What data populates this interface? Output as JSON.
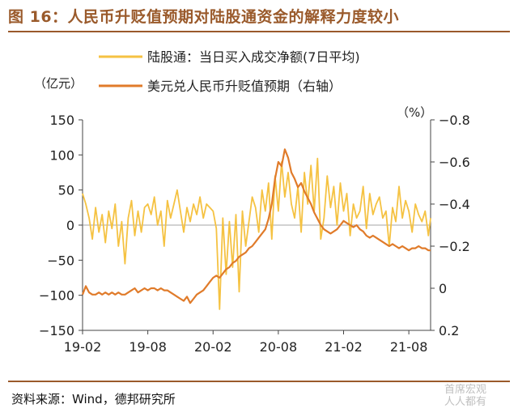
{
  "header": {
    "title": "图 16：人民币升贬值预期对陆股通资金的解释力度较小"
  },
  "footer": {
    "source": "资料来源：Wind，德邦研究所",
    "watermark_line1": "首席宏观",
    "watermark_line2": "人人都有"
  },
  "chart_data": {
    "type": "line",
    "title": "",
    "left_axis_unit": "（亿元）",
    "right_axis_unit": "（%）",
    "left_ylim": [
      -150,
      150
    ],
    "left_ticks": [
      150,
      100,
      50,
      0,
      -50,
      -100,
      -150
    ],
    "left_tick_labels": [
      "150",
      "100",
      "50",
      "0",
      "−50",
      "−100",
      "−150"
    ],
    "right_ylim": [
      0.2,
      -0.8
    ],
    "right_ticks": [
      -0.8,
      -0.6,
      -0.4,
      -0.2,
      0,
      0.2
    ],
    "right_tick_labels": [
      "−0.8",
      "−0.6",
      "−0.4",
      "−0.2",
      "0",
      "0.2"
    ],
    "x_range": [
      0,
      32
    ],
    "x_ticks": [
      0,
      6,
      12,
      18,
      24,
      30
    ],
    "x_tick_labels": [
      "19-02",
      "19-08",
      "20-02",
      "20-08",
      "21-02",
      "21-08"
    ],
    "legend": {
      "position": "top",
      "entries": [
        {
          "name": "陆股通：当日买入成交净额(7日平均)",
          "color": "#f5c242",
          "axis": "left"
        },
        {
          "name": "美元兑人民币升贬值预期（右轴）",
          "color": "#e07b2a",
          "axis": "right"
        }
      ]
    },
    "series": [
      {
        "name": "陆股通：当日买入成交净额(7日平均)",
        "axis": "left",
        "color": "#f5c242",
        "x": [
          0,
          0.3,
          0.6,
          0.9,
          1.2,
          1.5,
          1.8,
          2.1,
          2.4,
          2.7,
          3.0,
          3.3,
          3.6,
          3.9,
          4.2,
          4.5,
          4.8,
          5.1,
          5.4,
          5.7,
          6.0,
          6.3,
          6.6,
          6.9,
          7.2,
          7.5,
          7.8,
          8.1,
          8.4,
          8.7,
          9.0,
          9.3,
          9.6,
          9.9,
          10.2,
          10.5,
          10.8,
          11.1,
          11.4,
          11.7,
          12.0,
          12.3,
          12.6,
          12.9,
          13.2,
          13.5,
          13.8,
          14.1,
          14.4,
          14.7,
          15.0,
          15.3,
          15.6,
          15.9,
          16.2,
          16.5,
          16.8,
          17.1,
          17.4,
          17.7,
          18.0,
          18.3,
          18.6,
          18.9,
          19.2,
          19.5,
          19.8,
          20.1,
          20.4,
          20.7,
          21.0,
          21.3,
          21.6,
          21.9,
          22.2,
          22.5,
          22.8,
          23.1,
          23.4,
          23.7,
          24.0,
          24.3,
          24.6,
          24.9,
          25.2,
          25.5,
          25.8,
          26.1,
          26.4,
          26.7,
          27.0,
          27.3,
          27.6,
          27.9,
          28.2,
          28.5,
          28.8,
          29.1,
          29.4,
          29.7,
          30.0,
          30.3,
          30.6,
          30.9,
          31.2,
          31.5,
          31.8,
          32.0
        ],
        "values": [
          45,
          30,
          10,
          -20,
          25,
          -10,
          15,
          -25,
          20,
          -5,
          30,
          -30,
          5,
          -55,
          10,
          35,
          -15,
          20,
          -10,
          25,
          30,
          15,
          40,
          0,
          20,
          -30,
          35,
          10,
          30,
          50,
          20,
          -10,
          25,
          5,
          30,
          15,
          40,
          10,
          30,
          25,
          20,
          -5,
          -120,
          10,
          -70,
          5,
          -60,
          15,
          -95,
          20,
          -30,
          5,
          40,
          25,
          -10,
          50,
          20,
          60,
          -20,
          70,
          20,
          90,
          40,
          75,
          30,
          10,
          55,
          -10,
          75,
          30,
          85,
          20,
          95,
          -20,
          10,
          70,
          25,
          55,
          0,
          60,
          20,
          45,
          -15,
          30,
          10,
          20,
          55,
          -5,
          45,
          15,
          30,
          40,
          10,
          20,
          -30,
          25,
          5,
          55,
          10,
          35,
          20,
          -10,
          30,
          15,
          5,
          20,
          -15,
          10
        ]
      },
      {
        "name": "美元兑人民币升贬值预期（右轴）",
        "axis": "right",
        "color": "#e07b2a",
        "x": [
          0,
          0.3,
          0.6,
          0.9,
          1.2,
          1.5,
          1.8,
          2.1,
          2.4,
          2.7,
          3.0,
          3.3,
          3.6,
          3.9,
          4.2,
          4.5,
          4.8,
          5.1,
          5.4,
          5.7,
          6.0,
          6.3,
          6.6,
          6.9,
          7.2,
          7.5,
          7.8,
          8.1,
          8.4,
          8.7,
          9.0,
          9.3,
          9.6,
          9.9,
          10.2,
          10.5,
          10.8,
          11.1,
          11.4,
          11.7,
          12.0,
          12.3,
          12.6,
          12.9,
          13.2,
          13.5,
          13.8,
          14.1,
          14.4,
          14.7,
          15.0,
          15.3,
          15.6,
          15.9,
          16.2,
          16.5,
          16.8,
          17.1,
          17.4,
          17.7,
          18.0,
          18.3,
          18.6,
          18.9,
          19.2,
          19.5,
          19.8,
          20.1,
          20.4,
          20.7,
          21.0,
          21.3,
          21.6,
          21.9,
          22.2,
          22.5,
          22.8,
          23.1,
          23.4,
          23.7,
          24.0,
          24.3,
          24.6,
          24.9,
          25.2,
          25.5,
          25.8,
          26.1,
          26.4,
          26.7,
          27.0,
          27.3,
          27.6,
          27.9,
          28.2,
          28.5,
          28.8,
          29.1,
          29.4,
          29.7,
          30.0,
          30.3,
          30.6,
          30.9,
          31.2,
          31.5,
          31.8,
          32.0
        ],
        "values": [
          0.03,
          -0.01,
          0.02,
          0.03,
          0.03,
          0.02,
          0.03,
          0.02,
          0.03,
          0.02,
          0.03,
          0.02,
          0.03,
          0.03,
          0.02,
          0.01,
          0.0,
          0.02,
          0.01,
          0.0,
          0.01,
          0.0,
          0.0,
          0.01,
          0.0,
          0.01,
          0.01,
          0.02,
          0.03,
          0.04,
          0.05,
          0.06,
          0.04,
          0.07,
          0.05,
          0.03,
          0.02,
          0.01,
          -0.01,
          -0.03,
          -0.05,
          -0.06,
          -0.05,
          -0.07,
          -0.09,
          -0.1,
          -0.12,
          -0.13,
          -0.15,
          -0.16,
          -0.17,
          -0.19,
          -0.2,
          -0.22,
          -0.24,
          -0.26,
          -0.28,
          -0.33,
          -0.4,
          -0.52,
          -0.6,
          -0.58,
          -0.66,
          -0.62,
          -0.55,
          -0.52,
          -0.48,
          -0.5,
          -0.46,
          -0.43,
          -0.4,
          -0.36,
          -0.33,
          -0.3,
          -0.28,
          -0.27,
          -0.26,
          -0.27,
          -0.28,
          -0.3,
          -0.32,
          -0.31,
          -0.3,
          -0.29,
          -0.3,
          -0.28,
          -0.27,
          -0.25,
          -0.24,
          -0.25,
          -0.24,
          -0.23,
          -0.22,
          -0.21,
          -0.2,
          -0.21,
          -0.2,
          -0.19,
          -0.2,
          -0.19,
          -0.18,
          -0.19,
          -0.19,
          -0.2,
          -0.19,
          -0.19,
          -0.18,
          -0.18
        ]
      }
    ]
  }
}
